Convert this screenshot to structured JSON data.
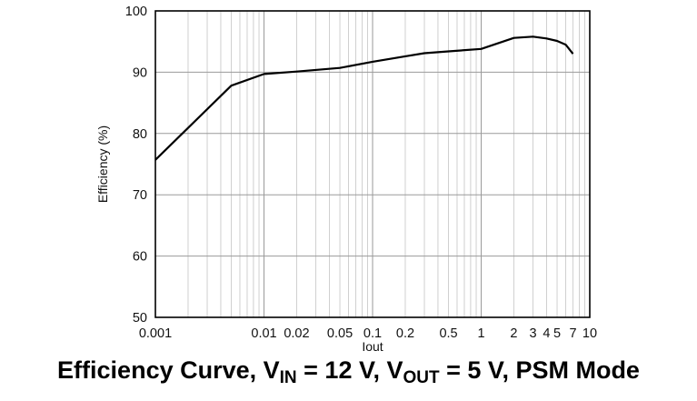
{
  "chart_data": {
    "type": "line",
    "xscale": "log",
    "xlim": [
      0.001,
      10
    ],
    "ylim": [
      50,
      100
    ],
    "xlabel": "Iout",
    "ylabel": "Efficiency (%)",
    "grid": true,
    "x_ticks": [
      {
        "value": 0.001,
        "label": "0.001"
      },
      {
        "value": 0.01,
        "label": "0.01"
      },
      {
        "value": 0.02,
        "label": "0.02"
      },
      {
        "value": 0.05,
        "label": "0.05"
      },
      {
        "value": 0.1,
        "label": "0.1"
      },
      {
        "value": 0.2,
        "label": "0.2"
      },
      {
        "value": 0.5,
        "label": "0.5"
      },
      {
        "value": 1,
        "label": "1"
      },
      {
        "value": 2,
        "label": "2"
      },
      {
        "value": 3,
        "label": "3"
      },
      {
        "value": 4,
        "label": "4"
      },
      {
        "value": 5,
        "label": "5"
      },
      {
        "value": 7,
        "label": "7"
      },
      {
        "value": 10,
        "label": "10"
      }
    ],
    "y_ticks": [
      50,
      60,
      70,
      80,
      90,
      100
    ],
    "series": [
      {
        "x": [
          0.001,
          0.005,
          0.01,
          0.02,
          0.05,
          0.1,
          0.2,
          0.3,
          0.5,
          1,
          2,
          3,
          4,
          5,
          6,
          7
        ],
        "y": [
          75.7,
          87.8,
          89.7,
          90.1,
          90.7,
          91.7,
          92.6,
          93.1,
          93.4,
          93.8,
          95.6,
          95.8,
          95.5,
          95.1,
          94.5,
          93.0
        ]
      }
    ],
    "caption": {
      "part1": "Efficiency Curve, V",
      "sub1": "IN",
      "part2": " = 12 V, V",
      "sub2": "OUT",
      "part3": " = 5 V, PSM Mode"
    }
  }
}
